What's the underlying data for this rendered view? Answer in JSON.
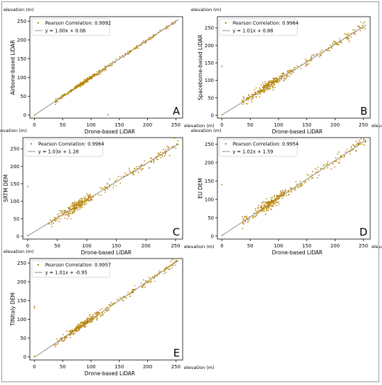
{
  "chart_data": [
    {
      "type": "scatter",
      "panel_letter": "A",
      "elevation_label": "elevation (m)",
      "xlabel": "Drone-based LiDAR",
      "ylabel": "Airbone-based LiDAR",
      "xticks": [
        "0",
        "50",
        "100",
        "150",
        "200",
        "250"
      ],
      "yticks": [
        "0",
        "50",
        "100",
        "150",
        "200",
        "250"
      ],
      "xlim": [
        -8,
        262
      ],
      "ylim": [
        -8,
        262
      ],
      "legend": [
        "Pearson Correlation: 0.9992",
        "y = 1.00x + 0.06"
      ],
      "legend_position": "top-left",
      "fit": {
        "slope": 1.0,
        "intercept": 0.06
      },
      "scatter_color": "#b8860b",
      "line_color": "#808080",
      "scatter": {
        "x_range": [
          35,
          252
        ],
        "spread": 2.5,
        "outliers": [
          [
            0,
            0
          ],
          [
            130,
            1
          ]
        ]
      }
    },
    {
      "type": "scatter",
      "panel_letter": "B",
      "elevation_label": "elevation (m)",
      "xlabel": "Drone-based LiDAR",
      "ylabel": "Spaceborne-based LiDAR",
      "xticks": [
        "0",
        "50",
        "100",
        "150",
        "200",
        "250"
      ],
      "yticks": [
        "0",
        "50",
        "100",
        "150",
        "200",
        "250"
      ],
      "xlim": [
        -8,
        262
      ],
      "ylim": [
        -8,
        282
      ],
      "legend": [
        "Pearson Correlation: 0.9964",
        "y = 1.01x + 0.88"
      ],
      "legend_position": "top-left",
      "fit": {
        "slope": 1.01,
        "intercept": 0.88
      },
      "scatter_color": "#b8860b",
      "line_color": "#808080",
      "scatter": {
        "x_range": [
          35,
          255
        ],
        "spread": 7,
        "outliers": [
          [
            0,
            140
          ],
          [
            0,
            2
          ]
        ]
      }
    },
    {
      "type": "scatter",
      "panel_letter": "C",
      "elevation_label": "elevation (m)",
      "xlabel": "Drone-based LiDAR",
      "ylabel": "SRTM DEM",
      "xticks": [
        "0",
        "50",
        "100",
        "150",
        "200",
        "250"
      ],
      "yticks": [
        "0",
        "50",
        "100",
        "150",
        "200",
        "250"
      ],
      "xlim": [
        -8,
        262
      ],
      "ylim": [
        -8,
        282
      ],
      "legend": [
        "Pearson Correlation: 0.9964",
        "y = 1.03x + 1.28"
      ],
      "legend_position": "top-left",
      "fit": {
        "slope": 1.03,
        "intercept": 1.28
      },
      "scatter_color": "#b8860b",
      "line_color": "#808080",
      "scatter": {
        "x_range": [
          35,
          255
        ],
        "spread": 7,
        "outliers": [
          [
            0,
            142
          ],
          [
            0,
            2
          ],
          [
            248,
            280
          ]
        ]
      }
    },
    {
      "type": "scatter",
      "panel_letter": "D",
      "elevation_label": "elevation (m)",
      "xlabel": "Drone-based LiDAR",
      "ylabel": "EU DEM",
      "xticks": [
        "0",
        "50",
        "100",
        "150",
        "200",
        "250"
      ],
      "yticks": [
        "0",
        "50",
        "100",
        "150",
        "200",
        "250"
      ],
      "xlim": [
        -8,
        262
      ],
      "ylim": [
        -8,
        268
      ],
      "legend": [
        "Pearson Correlation: 0.9954",
        "y = 1.02x + 1.59"
      ],
      "legend_position": "top-left",
      "fit": {
        "slope": 1.02,
        "intercept": 1.59
      },
      "scatter_color": "#b8860b",
      "line_color": "#808080",
      "scatter": {
        "x_range": [
          35,
          255
        ],
        "spread": 7,
        "outliers": [
          [
            0,
            140
          ],
          [
            0,
            2
          ]
        ]
      }
    },
    {
      "type": "scatter",
      "panel_letter": "E",
      "elevation_label": "elevation (m)",
      "xlabel": "Drone-based LiDAR",
      "ylabel": "TINItaly DEM",
      "xticks": [
        "0",
        "50",
        "100",
        "150",
        "200",
        "250"
      ],
      "yticks": [
        "0",
        "50",
        "100",
        "150",
        "200",
        "250"
      ],
      "xlim": [
        -8,
        262
      ],
      "ylim": [
        -8,
        262
      ],
      "legend": [
        "Pearson Correlation: 0.9957",
        "y = 1.01x + -0.95"
      ],
      "legend_position": "top-left",
      "fit": {
        "slope": 1.01,
        "intercept": -0.95
      },
      "scatter_color": "#b8860b",
      "line_color": "#808080",
      "scatter": {
        "x_range": [
          35,
          252
        ],
        "spread": 5,
        "outliers": [
          [
            0,
            135
          ],
          [
            0,
            130
          ],
          [
            0,
            2
          ]
        ]
      }
    }
  ]
}
